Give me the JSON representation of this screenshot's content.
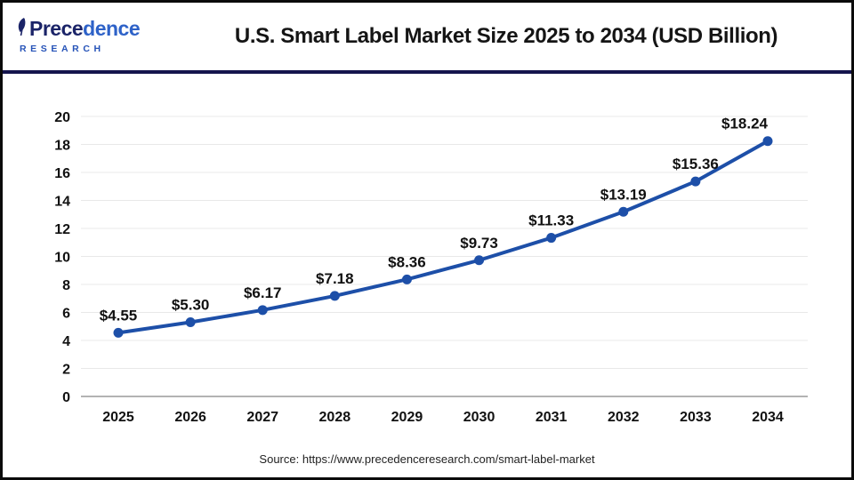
{
  "header": {
    "logo": {
      "name": "Precedence Research",
      "word_dark": "Prece",
      "word_light": "dence",
      "subtitle": "RESEARCH"
    },
    "title": "U.S. Smart Label Market Size 2025 to 2034 (USD Billion)"
  },
  "chart_data": {
    "type": "line",
    "title": "U.S. Smart Label Market Size 2025 to 2034 (USD Billion)",
    "categories": [
      "2025",
      "2026",
      "2027",
      "2028",
      "2029",
      "2030",
      "2031",
      "2032",
      "2033",
      "2034"
    ],
    "values": [
      4.55,
      5.3,
      6.17,
      7.18,
      8.36,
      9.73,
      11.33,
      13.19,
      15.36,
      18.24
    ],
    "data_labels": [
      "$4.55",
      "$5.30",
      "$6.17",
      "$7.18",
      "$8.36",
      "$9.73",
      "$11.33",
      "$13.19",
      "$15.36",
      "$18.24"
    ],
    "ylim": [
      0,
      20
    ],
    "ytick_step": 2,
    "yticks": [
      0,
      2,
      4,
      6,
      8,
      10,
      12,
      14,
      16,
      18,
      20
    ],
    "grid": true,
    "legend": "none",
    "xlabel": "",
    "ylabel": ""
  },
  "colors": {
    "line": "#1d4fa8",
    "grid": "#e9e9e9",
    "axis": "#b3b3b3",
    "divider": "#15154d",
    "label": "#111111"
  },
  "footer": {
    "source": "Source: https://www.precedenceresearch.com/smart-label-market"
  }
}
